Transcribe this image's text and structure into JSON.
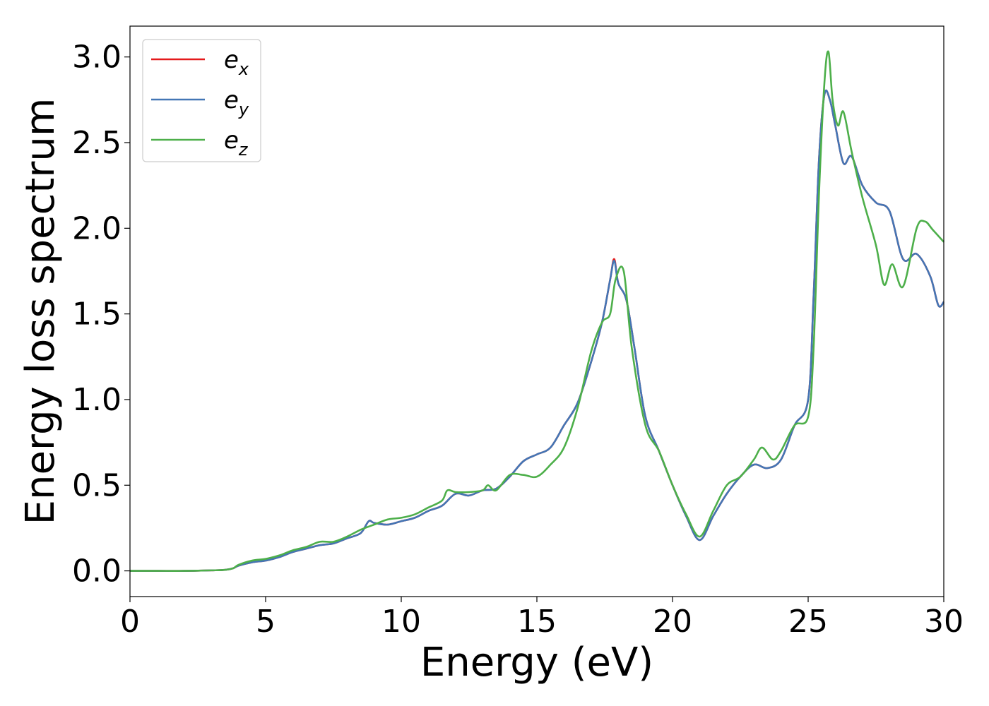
{
  "chart_data": {
    "type": "line",
    "xlabel": "Energy (eV)",
    "ylabel": "Energy loss spectrum",
    "xlim": [
      0,
      30
    ],
    "ylim": [
      -0.15,
      3.18
    ],
    "xticks": [
      0,
      5,
      10,
      15,
      20,
      25,
      30
    ],
    "yticks": [
      0.0,
      0.5,
      1.0,
      1.5,
      2.0,
      2.5,
      3.0
    ],
    "xtick_labels": [
      "0",
      "5",
      "10",
      "15",
      "20",
      "25",
      "30"
    ],
    "ytick_labels": [
      "0.0",
      "0.5",
      "1.0",
      "1.5",
      "2.0",
      "2.5",
      "3.0"
    ],
    "grid": false,
    "legend_position": "top-left",
    "series": [
      {
        "name": "ex",
        "base": "e",
        "sub": "x",
        "color": "#e41a1c",
        "x": [
          0,
          1,
          2,
          3,
          3.5,
          3.8,
          4,
          4.5,
          5,
          5.5,
          6,
          6.5,
          7,
          7.5,
          8,
          8.5,
          8.8,
          9,
          9.5,
          10,
          10.5,
          11,
          11.5,
          12,
          12.5,
          13,
          13.5,
          14,
          14.5,
          15,
          15.5,
          16,
          16.5,
          17,
          17.4,
          17.7,
          17.85,
          18,
          18.3,
          18.6,
          19,
          19.5,
          20,
          20.5,
          21,
          21.5,
          22,
          22.5,
          23,
          23.5,
          24,
          24.5,
          25,
          25.2,
          25.4,
          25.6,
          25.8,
          26,
          26.3,
          26.6,
          27,
          27.5,
          28,
          28.5,
          29,
          29.5,
          29.8,
          30
        ],
        "y": [
          0,
          0,
          0,
          0.003,
          0.006,
          0.015,
          0.03,
          0.05,
          0.06,
          0.08,
          0.11,
          0.13,
          0.15,
          0.16,
          0.19,
          0.22,
          0.29,
          0.28,
          0.27,
          0.29,
          0.31,
          0.35,
          0.38,
          0.45,
          0.44,
          0.47,
          0.48,
          0.55,
          0.64,
          0.68,
          0.72,
          0.85,
          0.98,
          1.22,
          1.45,
          1.7,
          1.82,
          1.68,
          1.58,
          1.3,
          0.9,
          0.7,
          0.5,
          0.32,
          0.18,
          0.32,
          0.45,
          0.55,
          0.62,
          0.6,
          0.65,
          0.85,
          1.0,
          1.6,
          2.4,
          2.78,
          2.75,
          2.6,
          2.38,
          2.42,
          2.25,
          2.15,
          2.1,
          1.82,
          1.85,
          1.72,
          1.55,
          1.57
        ]
      },
      {
        "name": "ey",
        "base": "e",
        "sub": "y",
        "color": "#4376b5",
        "x": [
          0,
          1,
          2,
          3,
          3.5,
          3.8,
          4,
          4.5,
          5,
          5.5,
          6,
          6.5,
          7,
          7.5,
          8,
          8.5,
          8.8,
          9,
          9.5,
          10,
          10.5,
          11,
          11.5,
          12,
          12.5,
          13,
          13.5,
          14,
          14.5,
          15,
          15.5,
          16,
          16.5,
          17,
          17.4,
          17.7,
          17.85,
          18,
          18.3,
          18.6,
          19,
          19.5,
          20,
          20.5,
          21,
          21.5,
          22,
          22.5,
          23,
          23.5,
          24,
          24.5,
          25,
          25.2,
          25.4,
          25.6,
          25.8,
          26,
          26.3,
          26.6,
          27,
          27.5,
          28,
          28.5,
          29,
          29.5,
          29.8,
          30
        ],
        "y": [
          0,
          0,
          0,
          0.003,
          0.006,
          0.015,
          0.03,
          0.05,
          0.06,
          0.08,
          0.11,
          0.13,
          0.15,
          0.16,
          0.19,
          0.22,
          0.29,
          0.28,
          0.27,
          0.29,
          0.31,
          0.35,
          0.38,
          0.45,
          0.44,
          0.47,
          0.48,
          0.55,
          0.64,
          0.68,
          0.72,
          0.85,
          0.98,
          1.22,
          1.45,
          1.7,
          1.81,
          1.68,
          1.58,
          1.3,
          0.9,
          0.7,
          0.5,
          0.32,
          0.18,
          0.32,
          0.45,
          0.55,
          0.62,
          0.6,
          0.65,
          0.85,
          1.0,
          1.6,
          2.4,
          2.78,
          2.75,
          2.6,
          2.38,
          2.42,
          2.25,
          2.15,
          2.1,
          1.82,
          1.85,
          1.72,
          1.55,
          1.57
        ]
      },
      {
        "name": "ez",
        "base": "e",
        "sub": "z",
        "color": "#4daf4a",
        "x": [
          0,
          1,
          2,
          3,
          3.5,
          3.8,
          4,
          4.5,
          5,
          5.5,
          6,
          6.5,
          7,
          7.5,
          8,
          8.5,
          9,
          9.5,
          10,
          10.5,
          11,
          11.5,
          11.7,
          12,
          12.5,
          13,
          13.2,
          13.5,
          14,
          14.5,
          15,
          15.5,
          16,
          16.5,
          17,
          17.4,
          17.7,
          17.9,
          18.2,
          18.5,
          19,
          19.5,
          20,
          20.5,
          21,
          21.5,
          22,
          22.5,
          23,
          23.3,
          23.7,
          24,
          24.5,
          25,
          25.2,
          25.4,
          25.6,
          25.75,
          25.9,
          26.1,
          26.3,
          26.6,
          27,
          27.5,
          27.8,
          28.1,
          28.5,
          29,
          29.3,
          29.6,
          30
        ],
        "y": [
          0,
          0,
          0,
          0.003,
          0.006,
          0.015,
          0.035,
          0.06,
          0.07,
          0.09,
          0.12,
          0.14,
          0.17,
          0.17,
          0.2,
          0.24,
          0.27,
          0.3,
          0.31,
          0.33,
          0.37,
          0.41,
          0.47,
          0.46,
          0.46,
          0.47,
          0.5,
          0.47,
          0.56,
          0.56,
          0.55,
          0.62,
          0.72,
          0.95,
          1.28,
          1.45,
          1.5,
          1.7,
          1.75,
          1.3,
          0.85,
          0.7,
          0.5,
          0.33,
          0.2,
          0.35,
          0.5,
          0.55,
          0.65,
          0.72,
          0.65,
          0.7,
          0.85,
          0.9,
          1.3,
          2.2,
          2.85,
          3.03,
          2.75,
          2.6,
          2.68,
          2.45,
          2.18,
          1.9,
          1.67,
          1.79,
          1.66,
          2.0,
          2.04,
          1.99,
          1.92
        ]
      }
    ]
  }
}
